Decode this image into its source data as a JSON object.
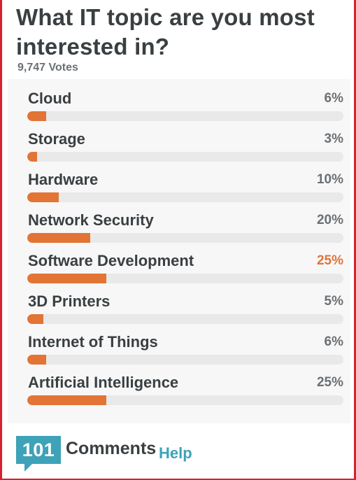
{
  "poll": {
    "title": "What IT topic are you most interested in?",
    "votes_text": "9,747 Votes",
    "options": [
      {
        "label": "Cloud",
        "percent_text": "6%",
        "percent": 6,
        "leading": false
      },
      {
        "label": "Storage",
        "percent_text": "3%",
        "percent": 3,
        "leading": false
      },
      {
        "label": "Hardware",
        "percent_text": "10%",
        "percent": 10,
        "leading": false
      },
      {
        "label": "Network Security",
        "percent_text": "20%",
        "percent": 20,
        "leading": false
      },
      {
        "label": "Software Development",
        "percent_text": "25%",
        "percent": 25,
        "leading": true
      },
      {
        "label": "3D Printers",
        "percent_text": "5%",
        "percent": 5,
        "leading": false
      },
      {
        "label": "Internet of Things",
        "percent_text": "6%",
        "percent": 6,
        "leading": false
      },
      {
        "label": "Artificial Intelligence",
        "percent_text": "25%",
        "percent": 25,
        "leading": false
      }
    ]
  },
  "footer": {
    "comment_count": "101",
    "comments_label": "Comments",
    "help_label": "Help"
  },
  "colors": {
    "bar_fill": "#e27435",
    "bar_track": "#e9e9e9",
    "leading_percent": "#e0743d",
    "accent_teal": "#3ea2b8",
    "frame_border": "#d6222f"
  }
}
